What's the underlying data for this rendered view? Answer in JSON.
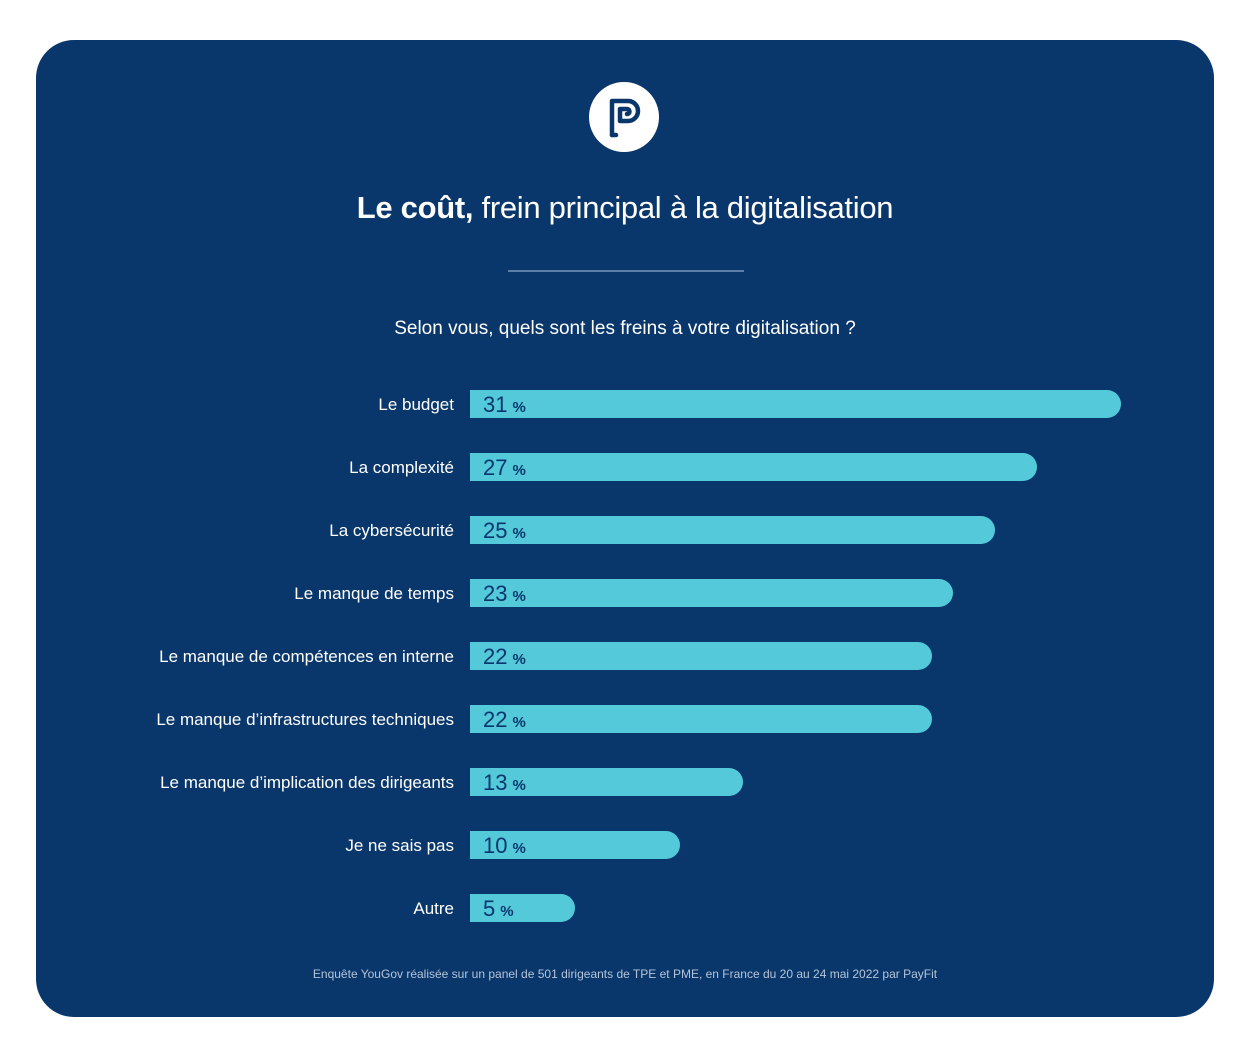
{
  "header": {
    "logo_icon": "payfit-logo-icon",
    "title_bold": "Le coût,",
    "title_rest": " frein principal à la digitalisation"
  },
  "chart_data": {
    "type": "bar",
    "orientation": "horizontal",
    "title": "Selon vous, quels sont les freins à votre digitalisation ?",
    "categories": [
      "Le budget",
      "La complexité",
      "La cybersécurité",
      "Le manque de temps",
      "Le manque de compétences en interne",
      "Le manque d’infrastructures techniques",
      "Le manque d’implication des dirigeants",
      "Je ne sais pas",
      "Autre"
    ],
    "values": [
      31,
      27,
      25,
      23,
      22,
      22,
      13,
      10,
      5
    ],
    "unit": "%",
    "xlim": [
      0,
      31
    ],
    "colors": {
      "background": "#0a376b",
      "bar": "#53c9da",
      "value_text": "#0a376b",
      "label_text": "#ffffff"
    }
  },
  "footnote": "Enquête YouGov réalisée sur un panel de 501 dirigeants de TPE et PME, en France du 20 au 24 mai 2022 par PayFit"
}
